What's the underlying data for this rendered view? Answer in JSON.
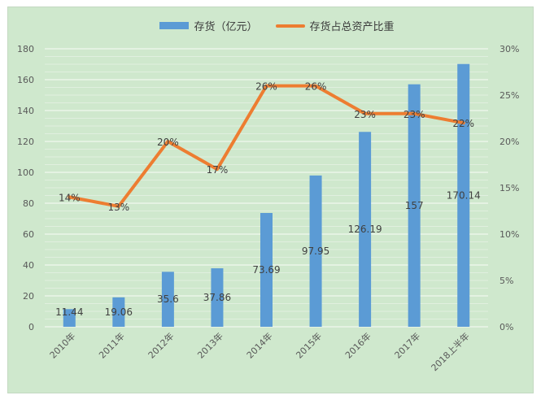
{
  "colors": {
    "bar": "#5b9bd5",
    "line": "#ed7d31",
    "background": "#cfe8cd",
    "grid": "#e6f2e4"
  },
  "chart_data": {
    "type": "bar",
    "title": "",
    "categories": [
      "2010年",
      "2011年",
      "2012年",
      "2013年",
      "2014年",
      "2015年",
      "2016年",
      "2017年",
      "2018上半年"
    ],
    "series": [
      {
        "name": "存货（亿元）",
        "type": "bar",
        "axis": "left",
        "values": [
          11.44,
          19.06,
          35.6,
          37.86,
          73.69,
          97.95,
          126.19,
          157,
          170.14
        ],
        "labels": [
          "11.44",
          "19.06",
          "35.6",
          "37.86",
          "73.69",
          "97.95",
          "126.19",
          "157",
          "170.14"
        ]
      },
      {
        "name": "存货占总资产比重",
        "type": "line",
        "axis": "right",
        "values": [
          14,
          13,
          20,
          17,
          26,
          26,
          23,
          23,
          22
        ],
        "labels": [
          "14%",
          "13%",
          "20%",
          "17%",
          "26%",
          "26%",
          "23%",
          "23%",
          "22%"
        ]
      }
    ],
    "y_left": {
      "min": 0,
      "max": 180,
      "step": 20,
      "ticks": [
        "0",
        "20",
        "40",
        "60",
        "80",
        "100",
        "120",
        "140",
        "160",
        "180"
      ]
    },
    "y_right": {
      "min": 0,
      "max": 30,
      "step": 5,
      "ticks": [
        "0%",
        "5%",
        "10%",
        "15%",
        "20%",
        "25%",
        "30%"
      ]
    },
    "grid": true,
    "legend_position": "top"
  }
}
